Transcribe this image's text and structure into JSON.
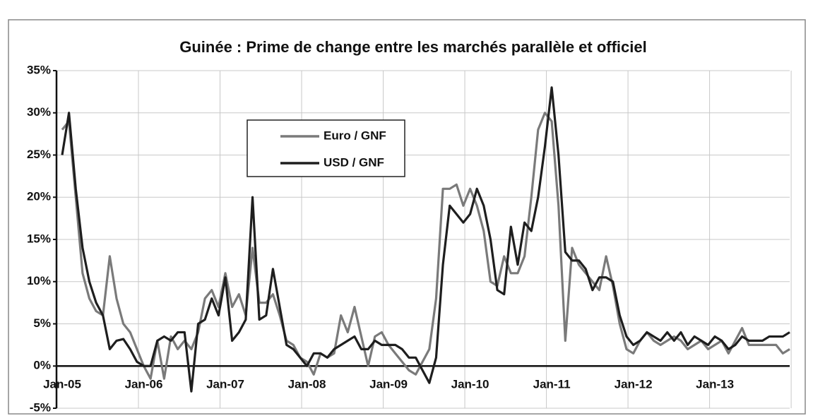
{
  "chart_data": {
    "type": "line",
    "title": "Guinée : Prime de change entre les marchés parallèle et officiel",
    "categories": [
      "Jan-05",
      null,
      null,
      null,
      null,
      null,
      null,
      null,
      null,
      null,
      null,
      null,
      "Jan-06",
      null,
      null,
      null,
      null,
      null,
      null,
      null,
      null,
      null,
      null,
      null,
      "Jan-07",
      null,
      null,
      null,
      null,
      null,
      null,
      null,
      null,
      null,
      null,
      null,
      "Jan-08",
      null,
      null,
      null,
      null,
      null,
      null,
      null,
      null,
      null,
      null,
      null,
      "Jan-09",
      null,
      null,
      null,
      null,
      null,
      null,
      null,
      null,
      null,
      null,
      null,
      "Jan-10",
      null,
      null,
      null,
      null,
      null,
      null,
      null,
      null,
      null,
      null,
      null,
      "Jan-11",
      null,
      null,
      null,
      null,
      null,
      null,
      null,
      null,
      null,
      null,
      null,
      "Jan-12",
      null,
      null,
      null,
      null,
      null,
      null,
      null,
      null,
      null,
      null,
      null,
      "Jan-13",
      null,
      null,
      null,
      null,
      null,
      null,
      null,
      null,
      null,
      null,
      null
    ],
    "series": [
      {
        "name": "Euro / GNF",
        "color": "#7a7a7a",
        "values": [
          28,
          29,
          20,
          11,
          8,
          6.5,
          6,
          13,
          8,
          5,
          4,
          2,
          0,
          -1.5,
          3,
          -1.5,
          3.5,
          2,
          3,
          2,
          4,
          8,
          9,
          7,
          11,
          7,
          8.5,
          6,
          14,
          7.5,
          7.5,
          8.5,
          6,
          3,
          2.5,
          1,
          0.5,
          -1,
          1.5,
          1,
          1.5,
          6,
          4,
          7,
          3.5,
          0,
          3.5,
          4,
          2.5,
          1.5,
          0.5,
          -0.5,
          -1,
          0.5,
          2,
          8,
          21,
          21,
          21.5,
          19,
          21,
          19,
          16,
          10,
          9.5,
          13,
          11,
          11,
          13,
          20,
          28,
          30,
          29,
          19,
          3,
          14,
          12,
          11,
          10,
          9,
          13,
          9.5,
          5,
          2,
          1.5,
          3,
          4,
          3,
          2.5,
          3,
          3.5,
          3,
          2,
          2.5,
          3,
          2,
          2.5,
          3,
          1.5,
          3,
          4.5,
          2.5,
          2.5,
          2.5,
          2.5,
          2.5,
          1.5,
          2
        ]
      },
      {
        "name": "USD / GNF",
        "color": "#1e1e1e",
        "values": [
          25,
          30,
          21,
          14,
          10,
          7.5,
          6,
          2,
          3,
          3.2,
          2,
          0.5,
          0,
          0,
          3,
          3.5,
          3,
          4,
          4,
          -3,
          5,
          5.5,
          8,
          6,
          10.5,
          3,
          4,
          5.5,
          20,
          5.5,
          6,
          11.5,
          7,
          2.5,
          2,
          1,
          0,
          1.5,
          1.5,
          1,
          2,
          2.5,
          3,
          3.5,
          2,
          2,
          3,
          2.5,
          2.5,
          2.5,
          2,
          1,
          1,
          -0.5,
          -2,
          1,
          12,
          19,
          18,
          17,
          18,
          21,
          19,
          15,
          9,
          8.5,
          16.5,
          12,
          17,
          16,
          20,
          26,
          33,
          25,
          13.5,
          12.5,
          12.5,
          11.5,
          9,
          10.5,
          10.5,
          10,
          6,
          3.5,
          2.5,
          3,
          4,
          3.5,
          3,
          4,
          3,
          4,
          2.5,
          3.5,
          3,
          2.5,
          3.5,
          3,
          2,
          2.5,
          3.5,
          3,
          3,
          3,
          3.5,
          3.5,
          3.5,
          4
        ]
      }
    ],
    "ylim": [
      -5,
      35
    ],
    "yticks": [
      {
        "value": -5,
        "label": "-5%"
      },
      {
        "value": 0,
        "label": "0%"
      },
      {
        "value": 5,
        "label": "5%"
      },
      {
        "value": 10,
        "label": "10%"
      },
      {
        "value": 15,
        "label": "15%"
      },
      {
        "value": 20,
        "label": "20%"
      },
      {
        "value": 25,
        "label": "25%"
      },
      {
        "value": 30,
        "label": "30%"
      },
      {
        "value": 35,
        "label": "35%"
      }
    ],
    "grid": true
  }
}
